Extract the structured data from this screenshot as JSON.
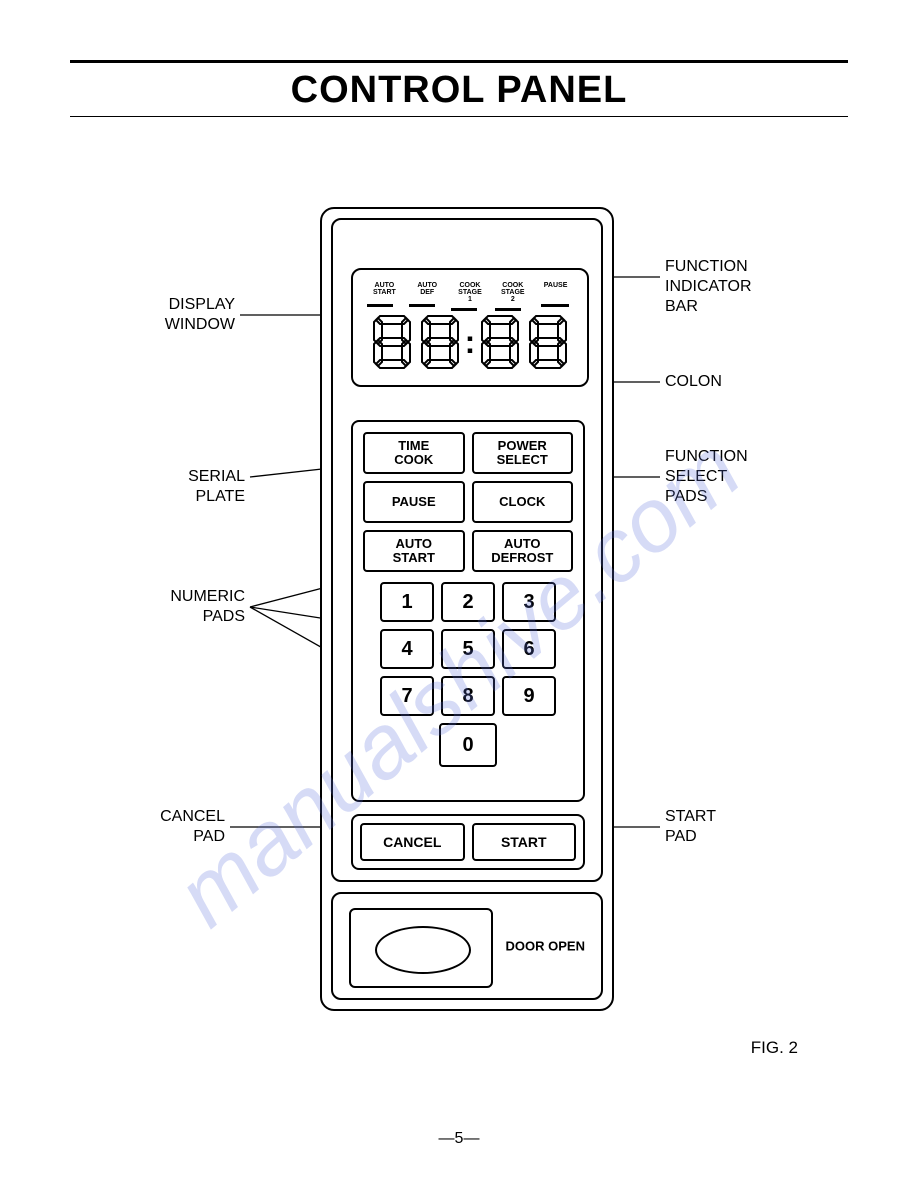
{
  "title": "CONTROL PANEL",
  "watermark": "manualshive.com",
  "display": {
    "indicators": [
      "AUTO\nSTART",
      "AUTO\nDEF",
      "COOK\nSTAGE\n1",
      "COOK\nSTAGE\n2",
      "PAUSE"
    ],
    "digits": "88:88"
  },
  "function_pads": {
    "rows": [
      [
        "TIME COOK",
        "POWER SELECT"
      ],
      [
        "PAUSE",
        "CLOCK"
      ],
      [
        "AUTO START",
        "AUTO DEFROST"
      ]
    ]
  },
  "numeric_pads": [
    "1",
    "2",
    "3",
    "4",
    "5",
    "6",
    "7",
    "8",
    "9",
    "0"
  ],
  "cancel_label": "CANCEL",
  "start_label": "START",
  "door_label": "DOOR OPEN",
  "callouts": {
    "display_window": "DISPLAY\nWINDOW",
    "serial_plate": "SERIAL PLATE",
    "numeric_pads": "NUMERIC\nPADS",
    "cancel_pad": "CANCEL\nPAD",
    "func_indicator": "FUNCTION\nINDICATOR BAR",
    "colon": "COLON",
    "func_select": "FUNCTION\nSELECT\nPADS",
    "start_pad": "START\nPAD"
  },
  "figure": "FIG. 2",
  "page_number": "—5—",
  "colors": {
    "stroke": "#000000",
    "bg": "#ffffff",
    "watermark": "rgba(90,110,220,0.25)"
  }
}
